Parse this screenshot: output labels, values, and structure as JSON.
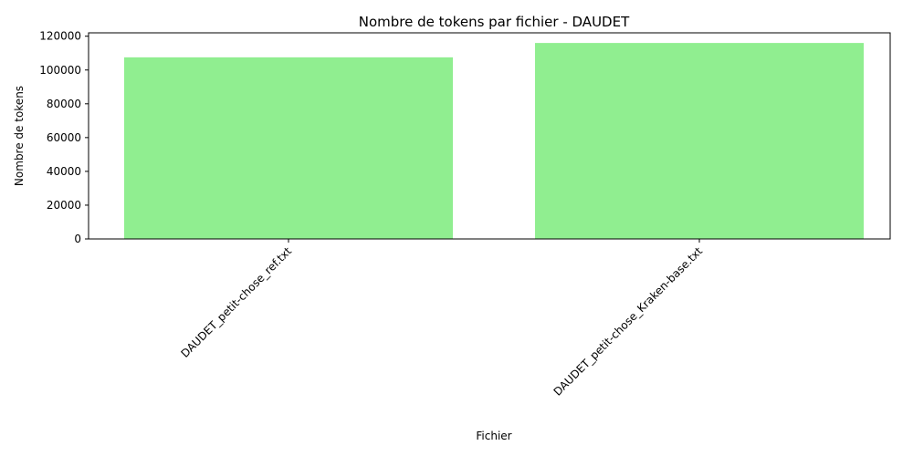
{
  "chart_data": {
    "type": "bar",
    "title": "Nombre de tokens par fichier - DAUDET",
    "xlabel": "Fichier",
    "ylabel": "Nombre de tokens",
    "categories": [
      "DAUDET_petit-chose_ref.txt",
      "DAUDET_petit-chose_Kraken-base.txt"
    ],
    "values": [
      107500,
      116000
    ],
    "ylim": [
      0,
      122000
    ],
    "yticks": [
      0,
      20000,
      40000,
      60000,
      80000,
      100000,
      120000
    ],
    "bar_color": "#90ee90",
    "grid": false,
    "legend": "none"
  }
}
